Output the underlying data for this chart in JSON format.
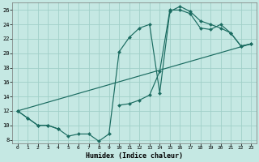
{
  "xlabel": "Humidex (Indice chaleur)",
  "background_color": "#c5e8e3",
  "grid_color": "#a0d0c8",
  "line_color": "#1a6b60",
  "xlim": [
    -0.5,
    23.5
  ],
  "ylim": [
    7.5,
    27.0
  ],
  "yticks": [
    8,
    10,
    12,
    14,
    16,
    18,
    20,
    22,
    24,
    26
  ],
  "xticks": [
    0,
    1,
    2,
    3,
    4,
    5,
    6,
    7,
    8,
    9,
    10,
    11,
    12,
    13,
    14,
    15,
    16,
    17,
    18,
    19,
    20,
    21,
    22,
    23
  ],
  "line1_x": [
    0,
    1,
    2,
    3,
    4,
    5,
    6,
    7,
    8,
    9,
    10,
    11,
    12,
    13,
    14,
    15,
    16,
    17,
    18,
    19,
    20,
    21,
    22,
    23
  ],
  "line1_y": [
    12.0,
    11.0,
    10.0,
    10.0,
    9.5,
    8.5,
    8.8,
    8.8,
    7.8,
    8.8,
    20.2,
    22.2,
    23.5,
    24.0,
    14.5,
    25.8,
    26.5,
    25.8,
    24.5,
    24.0,
    23.5,
    22.8,
    21.0,
    21.3
  ],
  "line2_x": [
    0,
    1,
    2,
    3,
    4,
    10,
    11,
    12,
    13,
    14,
    15,
    16,
    17,
    18,
    19,
    20,
    21,
    22,
    23
  ],
  "line2_y": [
    12.0,
    11.0,
    10.0,
    10.0,
    9.5,
    12.8,
    13.0,
    13.5,
    14.2,
    17.5,
    26.0,
    26.0,
    25.5,
    23.5,
    23.3,
    24.0,
    22.8,
    21.0,
    21.3
  ],
  "line3_x": [
    0,
    23
  ],
  "line3_y": [
    12.0,
    21.3
  ]
}
